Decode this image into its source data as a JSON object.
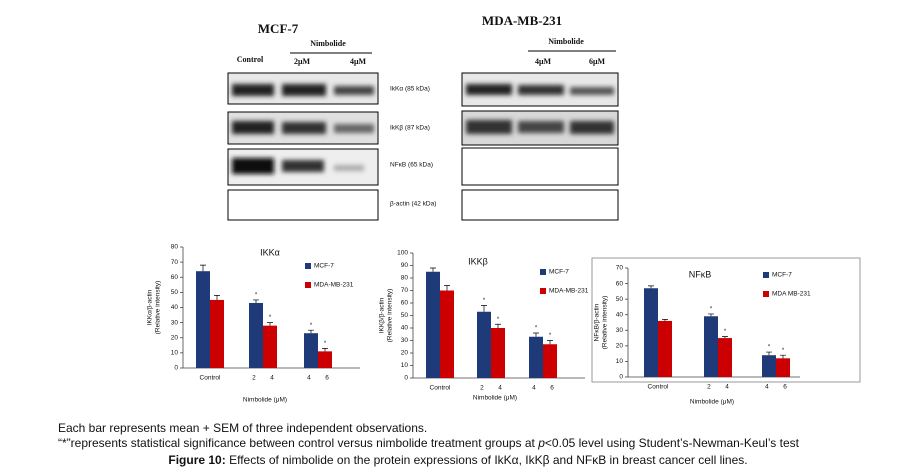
{
  "blots": {
    "left": {
      "title": "MCF-7",
      "control": "Control",
      "treatment": "Nimbolide",
      "doses": [
        "2μM",
        "4μM"
      ]
    },
    "right": {
      "title": "MDA-MB-231",
      "treatment": "Nimbolide",
      "doses": [
        "4μM",
        "6μM"
      ]
    },
    "bands": [
      "IkKα (85 kDa)",
      "IkKβ (87 kDa)",
      "NFκB (65 kDa)",
      "β-actin (42 kDa)"
    ]
  },
  "chart_data": [
    {
      "type": "bar",
      "title": "IKKα",
      "ylabel": [
        "IKKα/β-actin",
        "(Relative intensity)"
      ],
      "xlabel": "Nimbolide (μM)",
      "categories": [
        [
          "Control"
        ],
        [
          "2",
          "4"
        ],
        [
          "4",
          "6"
        ]
      ],
      "ylim": [
        0,
        80
      ],
      "yticks": [
        0,
        10,
        20,
        30,
        40,
        50,
        60,
        70,
        80
      ],
      "series": [
        {
          "name": "MCF-7",
          "color": "#1f3a78",
          "values": [
            64,
            43,
            23
          ],
          "errors": [
            4,
            2,
            2
          ],
          "value_labels": [
            null,
            "*",
            "*"
          ]
        },
        {
          "name": "MDA-MB-231",
          "color": "#cc0000",
          "values": [
            45,
            28,
            11
          ],
          "errors": [
            3,
            2,
            2
          ],
          "value_labels": [
            null,
            "*",
            "*"
          ]
        }
      ]
    },
    {
      "type": "bar",
      "title": "IKKβ",
      "ylabel": [
        "IKKβ/β-actin",
        "(Relative intensity)"
      ],
      "xlabel": "Nimbolide (μM)",
      "categories": [
        [
          "Control"
        ],
        [
          "2",
          "4"
        ],
        [
          "4",
          "6"
        ]
      ],
      "ylim": [
        0,
        100
      ],
      "yticks": [
        0,
        10,
        20,
        30,
        40,
        50,
        60,
        70,
        80,
        90,
        100
      ],
      "series": [
        {
          "name": "MCF-7",
          "color": "#1f3a78",
          "values": [
            85,
            53,
            33
          ],
          "errors": [
            3,
            5,
            3
          ],
          "value_labels": [
            null,
            "*",
            "*"
          ]
        },
        {
          "name": "MDA-MB-231",
          "color": "#cc0000",
          "values": [
            70,
            40,
            27
          ],
          "errors": [
            4,
            3,
            3
          ],
          "value_labels": [
            null,
            "*",
            "*"
          ]
        }
      ]
    },
    {
      "type": "bar",
      "title": "NFκB",
      "ylabel": [
        "NFκB/β-actin",
        "(Relative intensity)"
      ],
      "xlabel": "Nimbolide (μM)",
      "categories": [
        [
          "Control"
        ],
        [
          "2",
          "4"
        ],
        [
          "4",
          "6"
        ]
      ],
      "ylim": [
        0,
        70
      ],
      "yticks": [
        0,
        10,
        20,
        30,
        40,
        50,
        60,
        70
      ],
      "series": [
        {
          "name": "MCF-7",
          "color": "#1f3a78",
          "values": [
            57,
            39,
            14
          ],
          "errors": [
            1.5,
            1.5,
            2
          ],
          "value_labels": [
            null,
            "*",
            "*"
          ]
        },
        {
          "name": "MDA MB-231",
          "color": "#cc0000",
          "values": [
            36,
            25,
            12
          ],
          "errors": [
            1,
            1,
            2
          ],
          "value_labels": [
            null,
            "*",
            "*"
          ]
        }
      ]
    }
  ],
  "caption": {
    "line1": "Each bar represents mean + SEM of three independent observations.",
    "line2": [
      "“*”represents statistical significance between control versus nimbolide treatment groups at ",
      "p",
      "<0.05 level using Student’s-Newman-Keul’s test"
    ],
    "label": "Figure 10:",
    "text": " Effects of nimbolide on the protein expressions of IkKα, IkKβ and NFκB in breast cancer cell lines."
  }
}
